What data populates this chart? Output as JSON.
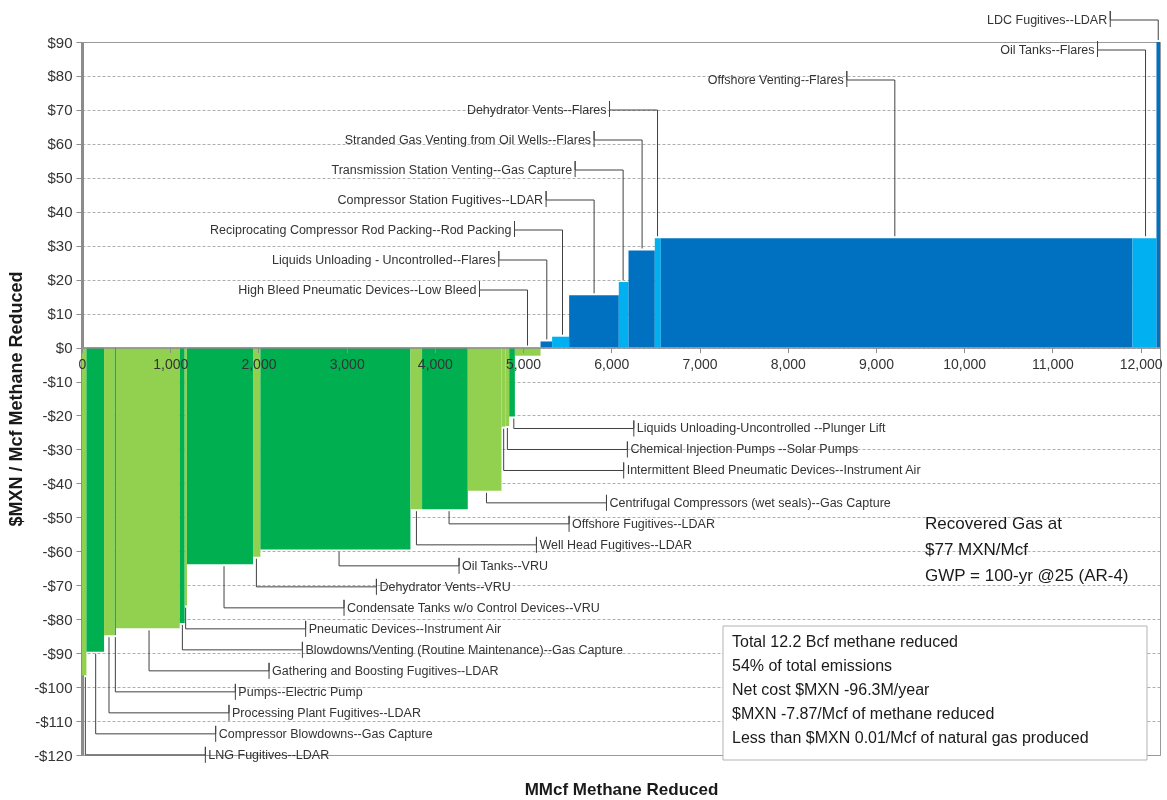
{
  "chart_data": {
    "type": "histogram",
    "xlabel": "MMcf Methane Reduced",
    "ylabel": "$MXN / Mcf Methane Reduced",
    "bins": [
      0,
      50,
      250,
      372,
      385,
      1108,
      1164,
      1190,
      1939,
      2022,
      3723,
      3855,
      4373,
      4755,
      4800,
      4843,
      4907,
      5198,
      5329,
      5522,
      6085,
      6195,
      6493,
      6561,
      11908,
      12180,
      12220
    ],
    "values": [
      -96.5,
      -89.6,
      -84.7,
      -84.7,
      -82.7,
      -81.1,
      -76,
      -63.8,
      -61.6,
      -59.5,
      -47.6,
      -47.6,
      -42.2,
      -23.3,
      -23.1,
      -20.3,
      -2.4,
      1.8,
      3.2,
      15.4,
      19.3,
      28.6,
      32.2,
      32.2,
      32.2,
      90
    ],
    "colors": [
      "#92d050",
      "#00b050",
      "#92d050",
      "#00b050",
      "#92d050",
      "#00b050",
      "#92d050",
      "#00b050",
      "#92d050",
      "#00b050",
      "#92d050",
      "#00b050",
      "#92d050",
      "#92d050",
      "#92d050",
      "#00b050",
      "#92d050",
      "#0070c0",
      "#00b0f0",
      "#0070c0",
      "#00b0f0",
      "#0070c0",
      "#00b0f0",
      "#0070c0",
      "#00b0f0",
      "#0070c0"
    ],
    "xlim": [
      0,
      12220
    ],
    "ylim": [
      -120,
      90
    ],
    "xticks": [
      0,
      {
        "value": 1000,
        "label": "1,000"
      },
      {
        "value": 2000,
        "label": "2,000"
      },
      {
        "value": 3000,
        "label": "3,000"
      },
      {
        "value": 4000,
        "label": "4,000"
      },
      {
        "value": 5000,
        "label": "5,000"
      },
      {
        "value": 6000,
        "label": "6,000"
      },
      {
        "value": 7000,
        "label": "7,000"
      },
      {
        "value": 8000,
        "label": "8,000"
      },
      {
        "value": 9000,
        "label": "9,000"
      },
      {
        "value": 10000,
        "label": "10,000"
      },
      {
        "value": 11000,
        "label": "11,000"
      },
      {
        "value": 12000,
        "label": "12,000"
      }
    ],
    "yticks": [
      {
        "value": 90,
        "label": "$90"
      },
      {
        "value": 80,
        "label": "$80"
      },
      {
        "value": 70,
        "label": "$70"
      },
      {
        "value": 60,
        "label": "$60"
      },
      {
        "value": 50,
        "label": "$50"
      },
      {
        "value": 40,
        "label": "$40"
      },
      {
        "value": 30,
        "label": "$30"
      },
      {
        "value": 20,
        "label": "$20"
      },
      {
        "value": 10,
        "label": "$10"
      },
      {
        "value": 0,
        "label": "$0"
      },
      {
        "value": -10,
        "label": "-$10"
      },
      {
        "value": -20,
        "label": "-$20"
      },
      {
        "value": -30,
        "label": "-$30"
      },
      {
        "value": -40,
        "label": "-$40"
      },
      {
        "value": -50,
        "label": "-$50"
      },
      {
        "value": -60,
        "label": "-$60"
      },
      {
        "value": -70,
        "label": "-$70"
      },
      {
        "value": -80,
        "label": "-$80"
      },
      {
        "value": -90,
        "label": "-$90"
      },
      {
        "value": -100,
        "label": "-$100"
      },
      {
        "value": -110,
        "label": "-$110"
      },
      {
        "value": -120,
        "label": "-$120"
      }
    ],
    "grid": "y",
    "annotations": [
      {
        "text": "LNG Fugitives--LDAR",
        "x": 38,
        "y": -96.5
      },
      {
        "text": "Compressor Blowdowns--Gas Capture",
        "x": 155,
        "y": -89.6
      },
      {
        "text": "Processing Plant Fugitives--LDAR",
        "x": 306,
        "y": -84.7
      },
      {
        "text": "Pumps--Electric Pump",
        "x": 378,
        "y": -84.7
      },
      {
        "text": "Gathering and Boosting Fugitives--LDAR",
        "x": 760,
        "y": -82.7
      },
      {
        "text": "Blowdowns/Venting (Routine Maintenance)--Gas Capture",
        "x": 1138,
        "y": -81.1
      },
      {
        "text": "Pneumatic Devices--Instrument Air",
        "x": 1175,
        "y": -76
      },
      {
        "text": "Condensate Tanks w/o Control Devices--VRU",
        "x": 1610,
        "y": -63.8
      },
      {
        "text": "Dehydrator Vents--VRU",
        "x": 1977,
        "y": -61.6
      },
      {
        "text": "Oil Tanks--VRU",
        "x": 2914,
        "y": -59.5
      },
      {
        "text": "Well Head Fugitives--LDAR",
        "x": 3791,
        "y": -47.6
      },
      {
        "text": "Offshore Fugitives--LDAR",
        "x": 4161,
        "y": -47.6
      },
      {
        "text": "Centrifugal Compressors (wet seals)--Gas Capture",
        "x": 4585,
        "y": -42.2
      },
      {
        "text": "Intermittent Bleed Pneumatic Devices--Instrument Air",
        "x": 4780,
        "y": -23.3
      },
      {
        "text": "Chemical Injection Pumps --Solar Pumps",
        "x": 4822,
        "y": -23.1
      },
      {
        "text": "Liquids Unloading-Uncontrolled --Plunger Lift",
        "x": 4895,
        "y": -20.3
      },
      {
        "text": "High Bleed Pneumatic Devices--Low Bleed",
        "x": 5050,
        "y": 0
      },
      {
        "text": "Liquids Unloading - Uncontrolled--Flares",
        "x": 5269,
        "y": 1.8
      },
      {
        "text": "Reciprocating Compressor Rod Packing--Rod Packing",
        "x": 5447,
        "y": 3.2
      },
      {
        "text": "Compressor Station Fugitives--LDAR",
        "x": 5805,
        "y": 15.4
      },
      {
        "text": "Transmission Station Venting--Gas Capture",
        "x": 6134,
        "y": 19.3
      },
      {
        "text": "Stranded Gas Venting from Oil Wells--Flares",
        "x": 6349,
        "y": 28.6
      },
      {
        "text": "Dehydrator Vents--Flares",
        "x": 6524,
        "y": 32.2
      },
      {
        "text": "Offshore Venting--Flares",
        "x": 9214,
        "y": 32.2
      },
      {
        "text": "Oil Tanks--Flares",
        "x": 12056,
        "y": 32.2
      },
      {
        "text": "LDC Fugitives--LDAR",
        "x": 12200,
        "y": 90
      },
      "Recovered Gas at\n$77 MXN/Mcf\nGWP = 100-yr @25 (AR-4)",
      "Total 12.2 Bcf methane reduced\n54% of total emissions\nNet cost $MXN -96.3M/year\n$MXN -7.87/Mcf of methane reduced\nLess than $MXN 0.01/Mcf of natural gas produced"
    ]
  }
}
